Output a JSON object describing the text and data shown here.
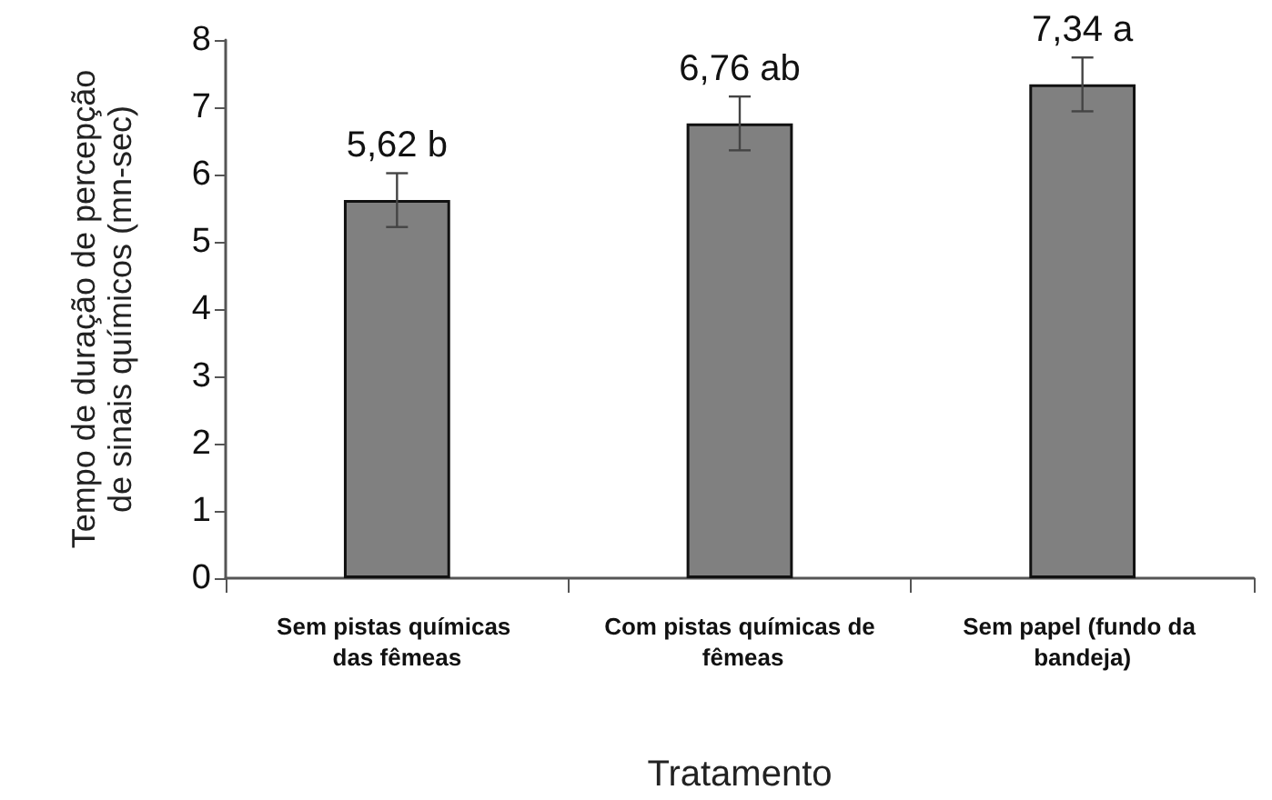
{
  "chart_data": {
    "type": "bar",
    "xlabel": "Tratamento",
    "ylabel": "Tempo de duração de percepção de sinais químicos (mn-sec)",
    "categories": [
      "Sem pistas químicas das fêmeas",
      "Com pistas químicas de fêmeas",
      "Sem papel (fundo da bandeja)"
    ],
    "values": [
      5.62,
      6.76,
      7.34
    ],
    "color": "#808080",
    "errors": [
      0.4,
      0.4,
      0.4
    ],
    "value_labels": [
      "5,62 b",
      "6,76 ab",
      "7,34 a"
    ],
    "ylim": [
      0,
      8
    ],
    "yticks": [
      0,
      1,
      2,
      3,
      4,
      5,
      6,
      7,
      8
    ],
    "grid": false
  }
}
